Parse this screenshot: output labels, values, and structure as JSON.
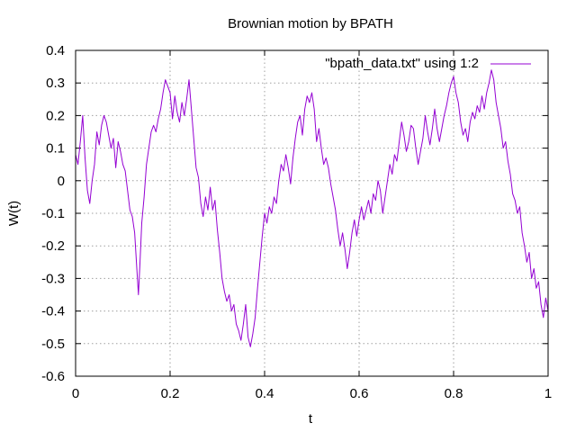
{
  "chart_data": {
    "type": "line",
    "title": "Brownian motion by BPATH",
    "xlabel": "t",
    "ylabel": "W(t)",
    "xlim": [
      0,
      1
    ],
    "ylim": [
      -0.6,
      0.4
    ],
    "x_ticks": [
      "0",
      "0.2",
      "0.4",
      "0.6",
      "0.8",
      "1"
    ],
    "y_ticks": [
      "0.4",
      "0.3",
      "0.2",
      "0.1",
      "0",
      "-0.1",
      "-0.2",
      "-0.3",
      "-0.4",
      "-0.5",
      "-0.6"
    ],
    "grid": true,
    "legend_position": "top-right",
    "series": [
      {
        "name": "\"bpath_data.txt\" using 1:2",
        "color": "#9400d3",
        "points": [
          [
            0.0,
            0.08
          ],
          [
            0.005,
            0.05
          ],
          [
            0.01,
            0.12
          ],
          [
            0.015,
            0.2
          ],
          [
            0.02,
            0.07
          ],
          [
            0.025,
            -0.03
          ],
          [
            0.03,
            -0.07
          ],
          [
            0.035,
            0.0
          ],
          [
            0.04,
            0.05
          ],
          [
            0.045,
            0.15
          ],
          [
            0.05,
            0.11
          ],
          [
            0.055,
            0.17
          ],
          [
            0.06,
            0.2
          ],
          [
            0.065,
            0.18
          ],
          [
            0.07,
            0.14
          ],
          [
            0.075,
            0.1
          ],
          [
            0.08,
            0.13
          ],
          [
            0.085,
            0.04
          ],
          [
            0.09,
            0.12
          ],
          [
            0.095,
            0.09
          ],
          [
            0.1,
            0.05
          ],
          [
            0.105,
            0.03
          ],
          [
            0.11,
            -0.03
          ],
          [
            0.115,
            -0.09
          ],
          [
            0.12,
            -0.11
          ],
          [
            0.125,
            -0.16
          ],
          [
            0.13,
            -0.28
          ],
          [
            0.133,
            -0.35
          ],
          [
            0.136,
            -0.26
          ],
          [
            0.14,
            -0.13
          ],
          [
            0.145,
            -0.05
          ],
          [
            0.15,
            0.05
          ],
          [
            0.155,
            0.1
          ],
          [
            0.16,
            0.15
          ],
          [
            0.165,
            0.17
          ],
          [
            0.17,
            0.15
          ],
          [
            0.175,
            0.19
          ],
          [
            0.18,
            0.22
          ],
          [
            0.185,
            0.27
          ],
          [
            0.19,
            0.31
          ],
          [
            0.195,
            0.29
          ],
          [
            0.2,
            0.27
          ],
          [
            0.205,
            0.19
          ],
          [
            0.21,
            0.26
          ],
          [
            0.215,
            0.21
          ],
          [
            0.22,
            0.18
          ],
          [
            0.225,
            0.24
          ],
          [
            0.23,
            0.2
          ],
          [
            0.235,
            0.25
          ],
          [
            0.24,
            0.31
          ],
          [
            0.245,
            0.22
          ],
          [
            0.25,
            0.13
          ],
          [
            0.255,
            0.04
          ],
          [
            0.26,
            0.01
          ],
          [
            0.265,
            -0.07
          ],
          [
            0.27,
            -0.11
          ],
          [
            0.275,
            -0.05
          ],
          [
            0.28,
            -0.09
          ],
          [
            0.285,
            -0.02
          ],
          [
            0.29,
            -0.09
          ],
          [
            0.295,
            -0.06
          ],
          [
            0.3,
            -0.15
          ],
          [
            0.305,
            -0.22
          ],
          [
            0.31,
            -0.3
          ],
          [
            0.315,
            -0.34
          ],
          [
            0.32,
            -0.37
          ],
          [
            0.325,
            -0.35
          ],
          [
            0.33,
            -0.4
          ],
          [
            0.335,
            -0.38
          ],
          [
            0.34,
            -0.44
          ],
          [
            0.345,
            -0.46
          ],
          [
            0.35,
            -0.49
          ],
          [
            0.355,
            -0.44
          ],
          [
            0.36,
            -0.38
          ],
          [
            0.365,
            -0.48
          ],
          [
            0.37,
            -0.51
          ],
          [
            0.375,
            -0.47
          ],
          [
            0.38,
            -0.42
          ],
          [
            0.385,
            -0.33
          ],
          [
            0.39,
            -0.25
          ],
          [
            0.395,
            -0.17
          ],
          [
            0.4,
            -0.1
          ],
          [
            0.405,
            -0.13
          ],
          [
            0.41,
            -0.08
          ],
          [
            0.415,
            -0.1
          ],
          [
            0.42,
            -0.05
          ],
          [
            0.425,
            -0.07
          ],
          [
            0.43,
            0.0
          ],
          [
            0.435,
            0.05
          ],
          [
            0.44,
            0.03
          ],
          [
            0.445,
            0.08
          ],
          [
            0.45,
            0.04
          ],
          [
            0.455,
            -0.01
          ],
          [
            0.46,
            0.07
          ],
          [
            0.465,
            0.13
          ],
          [
            0.47,
            0.18
          ],
          [
            0.475,
            0.2
          ],
          [
            0.48,
            0.14
          ],
          [
            0.485,
            0.22
          ],
          [
            0.49,
            0.26
          ],
          [
            0.495,
            0.24
          ],
          [
            0.5,
            0.27
          ],
          [
            0.505,
            0.22
          ],
          [
            0.51,
            0.12
          ],
          [
            0.515,
            0.16
          ],
          [
            0.52,
            0.1
          ],
          [
            0.525,
            0.05
          ],
          [
            0.53,
            0.07
          ],
          [
            0.535,
            0.04
          ],
          [
            0.54,
            -0.01
          ],
          [
            0.545,
            -0.05
          ],
          [
            0.55,
            -0.09
          ],
          [
            0.555,
            -0.15
          ],
          [
            0.56,
            -0.2
          ],
          [
            0.565,
            -0.16
          ],
          [
            0.57,
            -0.21
          ],
          [
            0.575,
            -0.27
          ],
          [
            0.58,
            -0.22
          ],
          [
            0.585,
            -0.16
          ],
          [
            0.59,
            -0.12
          ],
          [
            0.595,
            -0.17
          ],
          [
            0.6,
            -0.12
          ],
          [
            0.605,
            -0.08
          ],
          [
            0.61,
            -0.12
          ],
          [
            0.615,
            -0.09
          ],
          [
            0.62,
            -0.06
          ],
          [
            0.625,
            -0.1
          ],
          [
            0.63,
            -0.04
          ],
          [
            0.635,
            -0.06
          ],
          [
            0.64,
            0.0
          ],
          [
            0.645,
            -0.03
          ],
          [
            0.65,
            -0.1
          ],
          [
            0.655,
            -0.05
          ],
          [
            0.66,
            0.0
          ],
          [
            0.665,
            0.05
          ],
          [
            0.67,
            0.02
          ],
          [
            0.675,
            0.08
          ],
          [
            0.68,
            0.06
          ],
          [
            0.685,
            0.12
          ],
          [
            0.69,
            0.18
          ],
          [
            0.695,
            0.14
          ],
          [
            0.7,
            0.09
          ],
          [
            0.705,
            0.12
          ],
          [
            0.71,
            0.17
          ],
          [
            0.715,
            0.16
          ],
          [
            0.72,
            0.1
          ],
          [
            0.725,
            0.05
          ],
          [
            0.73,
            0.09
          ],
          [
            0.735,
            0.13
          ],
          [
            0.74,
            0.2
          ],
          [
            0.745,
            0.15
          ],
          [
            0.75,
            0.11
          ],
          [
            0.755,
            0.16
          ],
          [
            0.76,
            0.22
          ],
          [
            0.765,
            0.16
          ],
          [
            0.77,
            0.12
          ],
          [
            0.775,
            0.16
          ],
          [
            0.78,
            0.2
          ],
          [
            0.785,
            0.23
          ],
          [
            0.79,
            0.27
          ],
          [
            0.795,
            0.3
          ],
          [
            0.8,
            0.32
          ],
          [
            0.805,
            0.27
          ],
          [
            0.81,
            0.24
          ],
          [
            0.815,
            0.18
          ],
          [
            0.82,
            0.14
          ],
          [
            0.825,
            0.16
          ],
          [
            0.83,
            0.12
          ],
          [
            0.835,
            0.18
          ],
          [
            0.84,
            0.21
          ],
          [
            0.845,
            0.19
          ],
          [
            0.85,
            0.23
          ],
          [
            0.855,
            0.21
          ],
          [
            0.86,
            0.26
          ],
          [
            0.865,
            0.22
          ],
          [
            0.87,
            0.27
          ],
          [
            0.875,
            0.3
          ],
          [
            0.88,
            0.34
          ],
          [
            0.885,
            0.31
          ],
          [
            0.89,
            0.24
          ],
          [
            0.895,
            0.2
          ],
          [
            0.9,
            0.16
          ],
          [
            0.905,
            0.1
          ],
          [
            0.91,
            0.12
          ],
          [
            0.915,
            0.06
          ],
          [
            0.92,
            0.02
          ],
          [
            0.925,
            -0.04
          ],
          [
            0.93,
            -0.06
          ],
          [
            0.935,
            -0.1
          ],
          [
            0.94,
            -0.08
          ],
          [
            0.945,
            -0.16
          ],
          [
            0.95,
            -0.2
          ],
          [
            0.955,
            -0.25
          ],
          [
            0.96,
            -0.22
          ],
          [
            0.965,
            -0.3
          ],
          [
            0.97,
            -0.27
          ],
          [
            0.975,
            -0.33
          ],
          [
            0.98,
            -0.31
          ],
          [
            0.985,
            -0.38
          ],
          [
            0.99,
            -0.42
          ],
          [
            0.995,
            -0.36
          ],
          [
            1.0,
            -0.4
          ]
        ]
      }
    ]
  }
}
